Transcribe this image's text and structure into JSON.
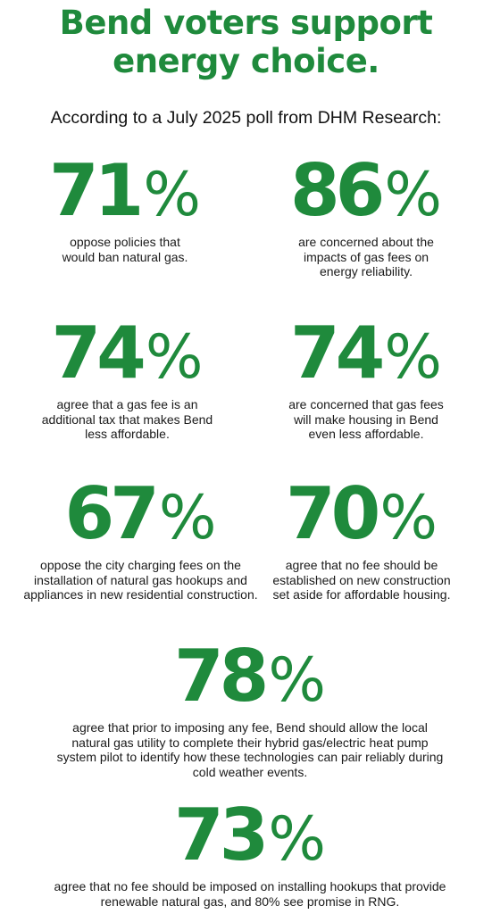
{
  "title_line1": "Bend voters support",
  "title_line2": "energy choice.",
  "subtitle": "According to a July 2025 poll from DHM Research:",
  "accent_color": "#1f8a3c",
  "stats": [
    {
      "value": "71",
      "unit": "%",
      "text": "oppose policies that would ban natural gas."
    },
    {
      "value": "86",
      "unit": "%",
      "text": "are concerned about the impacts of gas fees on energy reliability."
    },
    {
      "value": "74",
      "unit": "%",
      "text": "agree that a gas fee is an additional tax that makes Bend less affordable."
    },
    {
      "value": "74",
      "unit": "%",
      "text": "are concerned that gas fees will make housing in Bend even less affordable."
    },
    {
      "value": "67",
      "unit": "%",
      "text": "oppose the city charging fees on the installation of natural gas hookups and appliances in new residential construction."
    },
    {
      "value": "70",
      "unit": "%",
      "text": "agree that no fee should be established on new construction set aside for affordable housing."
    },
    {
      "value": "78",
      "unit": "%",
      "text": "agree that prior to imposing any fee, Bend should allow the local natural gas utility to complete their hybrid gas/electric heat pump system pilot to identify how these technologies can pair reliably during cold weather events."
    },
    {
      "value": "73",
      "unit": "%",
      "text": "agree that no fee should be imposed on installing hookups that provide renewable natural gas, and 80% see promise in RNG."
    }
  ]
}
